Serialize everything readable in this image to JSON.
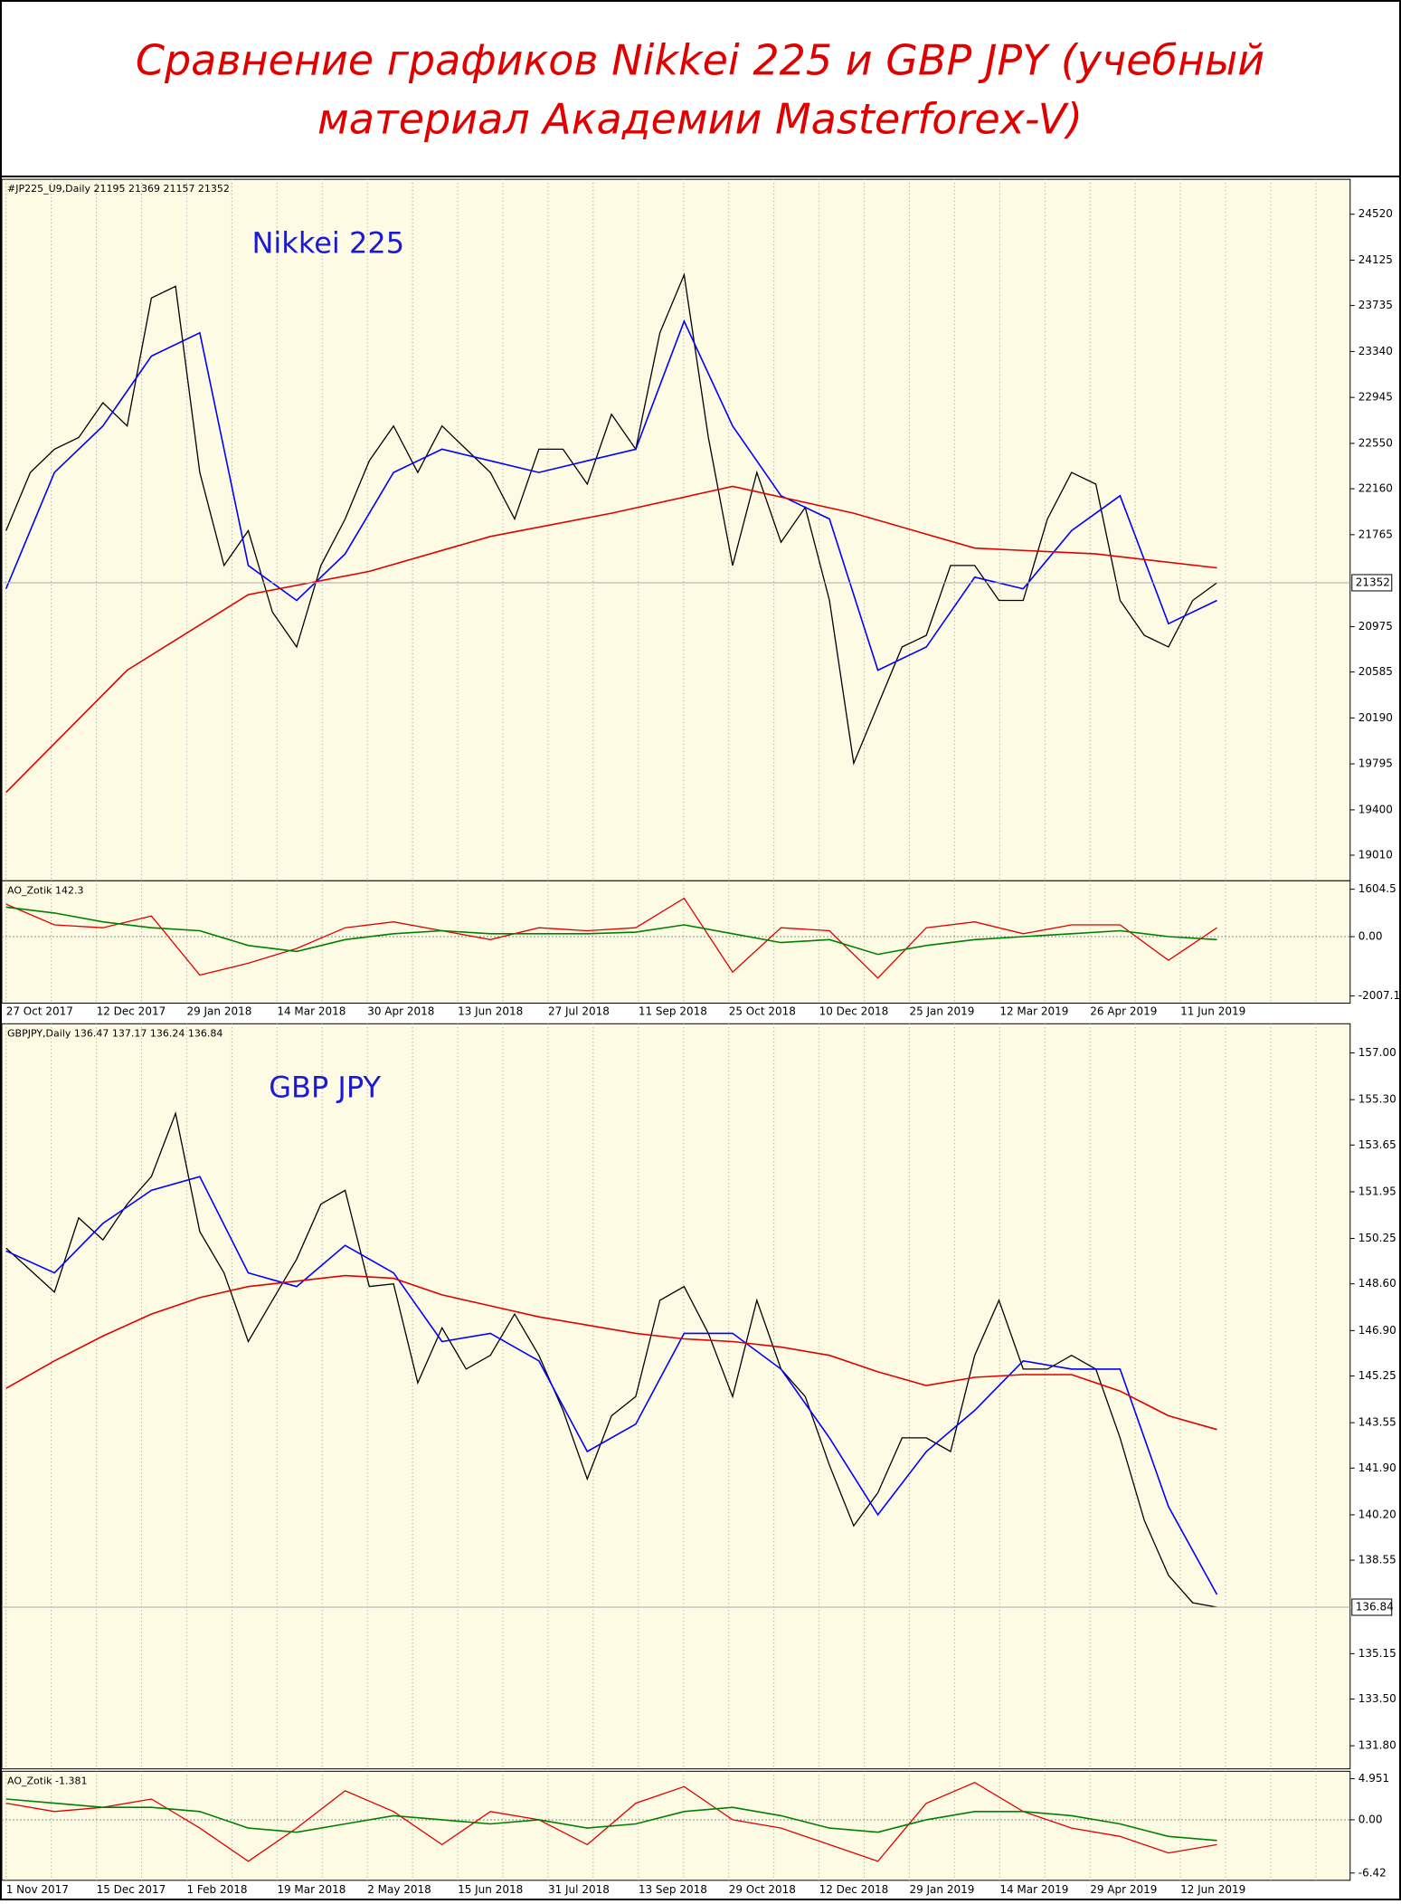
{
  "title": [
    "Сравнение графиков Nikkei 225 и GBP JPY (учебный",
    "материал Академии Masterforex-V)"
  ],
  "chart_data": [
    {
      "type": "line",
      "header": "#JP225_U9,Daily  21195 21369 21157 21352",
      "label": "Nikkei 225",
      "ylim": [
        18790,
        24820
      ],
      "yticks": [
        24520,
        24125,
        23735,
        23340,
        22945,
        22550,
        22160,
        21765,
        20975,
        20585,
        20190,
        19795,
        19400,
        19010
      ],
      "last": 21352,
      "series": [
        {
          "color": "#000000",
          "values": [
            21800,
            22300,
            22500,
            22600,
            22900,
            22700,
            23800,
            23900,
            22300,
            21500,
            21800,
            21100,
            20800,
            21500,
            21900,
            22400,
            22700,
            22300,
            22700,
            22500,
            22300,
            21900,
            22500,
            22500,
            22200,
            22800,
            22500,
            23500,
            24000,
            22600,
            21500,
            22300,
            21700,
            22000,
            21200,
            19800,
            20300,
            20800,
            20900,
            21500,
            21500,
            21200,
            21200,
            21900,
            22300,
            22200,
            21200,
            20900,
            20800,
            21200,
            21352
          ]
        },
        {
          "color": "#0000ff",
          "values": [
            21300,
            22300,
            22700,
            23300,
            23500,
            21500,
            21200,
            21600,
            22300,
            22500,
            22400,
            22300,
            22400,
            22500,
            23600,
            22700,
            22100,
            21900,
            20600,
            20800,
            21400,
            21300,
            21800,
            22100,
            21000,
            21200
          ]
        },
        {
          "color": "#e00000",
          "values": [
            19550,
            20600,
            21250,
            21450,
            21750,
            21950,
            22180,
            21950,
            21650,
            21600,
            21480
          ]
        }
      ]
    },
    {
      "type": "line",
      "header": "AO_Zotik 142.3",
      "ylim": [
        -2250,
        1890
      ],
      "yticks": [
        1604.5,
        {
          "value": 0,
          "label": "0.00"
        },
        -2007.1
      ],
      "xlabels": [
        "27 Oct 2017",
        "12 Dec 2017",
        "29 Jan 2018",
        "14 Mar 2018",
        "30 Apr 2018",
        "13 Jun 2018",
        "27 Jul 2018",
        "11 Sep 2018",
        "25 Oct 2018",
        "10 Dec 2018",
        "25 Jan 2019",
        "12 Mar 2019",
        "26 Apr 2019",
        "11 Jun 2019"
      ],
      "series": [
        {
          "color": "#e00000",
          "values": [
            1100,
            400,
            300,
            700,
            -1300,
            -900,
            -400,
            300,
            500,
            200,
            -100,
            300,
            200,
            300,
            1300,
            -1200,
            300,
            200,
            -1400,
            300,
            500,
            100,
            400,
            400,
            -800,
            300
          ]
        },
        {
          "color": "#008000",
          "values": [
            1000,
            800,
            500,
            300,
            200,
            -300,
            -500,
            -100,
            100,
            200,
            100,
            100,
            100,
            150,
            400,
            100,
            -200,
            -100,
            -600,
            -300,
            -100,
            0,
            100,
            200,
            0,
            -100
          ]
        }
      ]
    },
    {
      "type": "line",
      "header": "GBPJPY,Daily  136.47 137.17 136.24 136.84",
      "label": "GBP JPY",
      "ylim": [
        130.96,
        158.06
      ],
      "yticks": [
        {
          "value": 157,
          "label": "157.00"
        },
        {
          "value": 155.3,
          "label": "155.30"
        },
        153.65,
        151.95,
        150.25,
        {
          "value": 148.6,
          "label": "148.60"
        },
        {
          "value": 146.9,
          "label": "146.90"
        },
        145.25,
        143.55,
        {
          "value": 141.9,
          "label": "141.90"
        },
        {
          "value": 140.2,
          "label": "140.20"
        },
        138.55,
        135.15,
        {
          "value": 133.5,
          "label": "133.50"
        },
        {
          "value": 131.8,
          "label": "131.80"
        }
      ],
      "last": 136.84,
      "series": [
        {
          "color": "#000000",
          "values": [
            149.9,
            149.1,
            148.3,
            151.0,
            150.2,
            151.5,
            152.5,
            154.8,
            150.5,
            149.0,
            146.5,
            148.0,
            149.5,
            151.5,
            152.0,
            148.5,
            148.6,
            145.0,
            147.0,
            145.5,
            146.0,
            147.5,
            146.0,
            144.0,
            141.5,
            143.8,
            144.5,
            148.0,
            148.5,
            146.8,
            144.5,
            148.0,
            145.5,
            144.5,
            142.0,
            139.8,
            141.0,
            143.0,
            143.0,
            142.5,
            146.0,
            148.0,
            145.5,
            145.5,
            146.0,
            145.5,
            143.0,
            140.0,
            138.0,
            137.0,
            136.84
          ]
        },
        {
          "color": "#0000ff",
          "values": [
            149.8,
            149.0,
            150.8,
            152.0,
            152.5,
            149.0,
            148.5,
            150.0,
            149.0,
            146.5,
            146.8,
            145.8,
            142.5,
            143.5,
            146.8,
            146.8,
            145.5,
            143.0,
            140.2,
            142.5,
            144.0,
            145.8,
            145.5,
            145.5,
            140.5,
            137.3
          ]
        },
        {
          "color": "#e00000",
          "values": [
            144.8,
            145.8,
            146.7,
            147.5,
            148.1,
            148.5,
            148.7,
            148.9,
            148.8,
            148.2,
            147.8,
            147.4,
            147.1,
            146.8,
            146.6,
            146.5,
            146.3,
            146.0,
            145.4,
            144.9,
            145.2,
            145.3,
            145.3,
            144.7,
            143.8,
            143.3
          ]
        }
      ]
    },
    {
      "type": "line",
      "header": "AO_Zotik -1.381",
      "ylim": [
        -7.3,
        5.85
      ],
      "yticks": [
        4.951,
        {
          "value": 0,
          "label": "0.00"
        },
        -6.42
      ],
      "xlabels": [
        "1 Nov 2017",
        "15 Dec 2017",
        "1 Feb 2018",
        "19 Mar 2018",
        "2 May 2018",
        "15 Jun 2018",
        "31 Jul 2018",
        "13 Sep 2018",
        "29 Oct 2018",
        "12 Dec 2018",
        "29 Jan 2019",
        "14 Mar 2019",
        "29 Apr 2019",
        "12 Jun 2019"
      ],
      "series": [
        {
          "color": "#e00000",
          "values": [
            2,
            1,
            1.5,
            2.5,
            -1,
            -5,
            -1,
            3.5,
            1,
            -3,
            1,
            0,
            -3,
            2,
            4,
            0,
            -1,
            -3,
            -5,
            2,
            4.5,
            1,
            -1,
            -2,
            -4,
            -3
          ]
        },
        {
          "color": "#008000",
          "values": [
            2.5,
            2,
            1.5,
            1.5,
            1,
            -1,
            -1.5,
            -0.5,
            0.5,
            0,
            -0.5,
            0,
            -1,
            -0.5,
            1,
            1.5,
            0.5,
            -1,
            -1.5,
            0,
            1,
            1,
            0.5,
            -0.5,
            -2,
            -2.5
          ]
        }
      ]
    }
  ]
}
